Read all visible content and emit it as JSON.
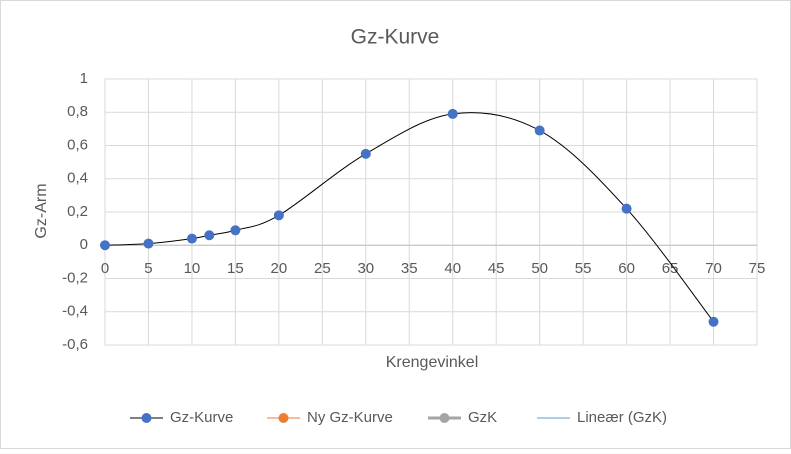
{
  "chart_data": {
    "type": "line",
    "title": "Gz-Kurve",
    "x_label": "Krengevinkel",
    "y_label": "Gz-Arm",
    "series": [
      {
        "name": "Gz-Kurve",
        "color": "#4472c4",
        "line_color": "#000000",
        "smooth": true,
        "x": [
          0,
          5,
          10,
          12,
          15,
          20,
          30,
          40,
          50,
          60,
          70
        ],
        "values": [
          0,
          0.01,
          0.04,
          0.06,
          0.09,
          0.18,
          0.55,
          0.79,
          0.69,
          0.22,
          -0.46
        ]
      },
      {
        "name": "Ny Gz-Kurve",
        "color": "#ed7d31"
      },
      {
        "name": "GzK",
        "color": "#a5a5a5"
      },
      {
        "name": "Lineær (GzK)",
        "color": "#5b9bd5"
      }
    ],
    "xlim": [
      0,
      75
    ],
    "xticks": [
      0,
      5,
      10,
      15,
      20,
      25,
      30,
      35,
      40,
      45,
      50,
      55,
      60,
      65,
      70,
      75
    ],
    "ylim": [
      -0.6,
      1
    ],
    "yticks": [
      {
        "value": -0.6,
        "label": "-0,6"
      },
      {
        "value": -0.4,
        "label": "-0,4"
      },
      {
        "value": -0.2,
        "label": "-0,2"
      },
      0,
      {
        "value": 0.2,
        "label": "0,2"
      },
      {
        "value": 0.4,
        "label": "0,4"
      },
      {
        "value": 0.6,
        "label": "0,6"
      },
      {
        "value": 0.8,
        "label": "0,8"
      },
      1
    ],
    "grid": true,
    "legend": "bottom"
  }
}
